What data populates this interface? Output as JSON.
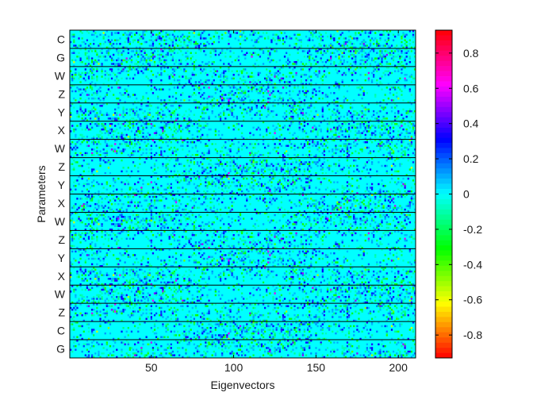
{
  "chart_data": {
    "type": "heatmap",
    "title": "",
    "xlabel": "Eigenvectors",
    "ylabel": "Parameters",
    "xlim": [
      1,
      210
    ],
    "xticks": [
      50,
      100,
      150,
      200
    ],
    "row_group_labels": [
      "C",
      "G",
      "W",
      "Z",
      "Y",
      "X",
      "W",
      "Z",
      "Y",
      "X",
      "W",
      "Z",
      "Y",
      "X",
      "W",
      "Z",
      "C",
      "G"
    ],
    "colorbar": {
      "colormap": "hsv",
      "range": [
        -0.93,
        0.93
      ],
      "ticks": [
        0.8,
        0.6,
        0.4,
        0.2,
        0,
        -0.2,
        -0.4,
        -0.6,
        -0.8
      ],
      "tick_labels": [
        "0.8",
        "0.6",
        "0.4",
        "0.2",
        "0",
        "-0.2",
        "-0.4",
        "-0.6",
        "-0.8"
      ]
    },
    "grid": false,
    "background_value": 0.0,
    "dominant_color": "#00ffe6"
  }
}
